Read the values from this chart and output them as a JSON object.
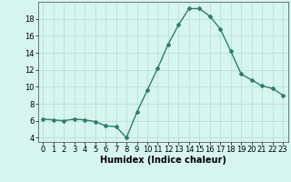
{
  "x": [
    0,
    1,
    2,
    3,
    4,
    5,
    6,
    7,
    8,
    9,
    10,
    11,
    12,
    13,
    14,
    15,
    16,
    17,
    18,
    19,
    20,
    21,
    22,
    23
  ],
  "y": [
    6.2,
    6.1,
    6.0,
    6.2,
    6.1,
    5.9,
    5.4,
    5.3,
    4.0,
    7.0,
    9.6,
    12.2,
    15.0,
    17.3,
    19.2,
    19.2,
    18.3,
    16.8,
    14.2,
    11.5,
    10.8,
    10.1,
    9.8,
    9.0
  ],
  "xlabel": "Humidex (Indice chaleur)",
  "xlim": [
    -0.5,
    23.5
  ],
  "ylim": [
    3.5,
    20.0
  ],
  "yticks": [
    4,
    6,
    8,
    10,
    12,
    14,
    16,
    18
  ],
  "xticks": [
    0,
    1,
    2,
    3,
    4,
    5,
    6,
    7,
    8,
    9,
    10,
    11,
    12,
    13,
    14,
    15,
    16,
    17,
    18,
    19,
    20,
    21,
    22,
    23
  ],
  "line_color": "#2e7d6e",
  "marker": "D",
  "marker_size": 2.0,
  "background_color": "#d6f5ef",
  "grid_color": "#b0ddd6",
  "xlabel_fontsize": 7,
  "tick_fontsize": 6,
  "line_width": 1.0
}
